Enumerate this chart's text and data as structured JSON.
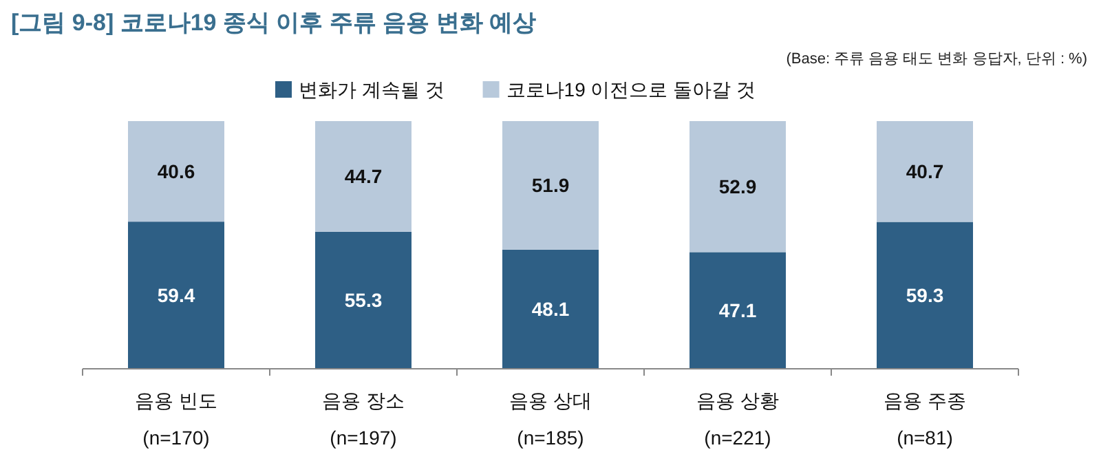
{
  "chart_data": {
    "type": "bar",
    "title": "[그림 9-8] 코로나19 종식 이후 주류 음용 변화 예상",
    "subtitle": "(Base: 주류 음용 태도 변화 응답자, 단위 : %)",
    "categories": [
      "음용 빈도\n(n=170)",
      "음용 장소\n(n=197)",
      "음용 상대\n(n=185)",
      "음용 상황\n(n=221)",
      "음용 주종\n(n=81)"
    ],
    "series": [
      {
        "name": "변화가 계속될 것",
        "color": "#2e5f85",
        "values": [
          59.4,
          55.3,
          48.1,
          47.1,
          59.3
        ]
      },
      {
        "name": "코로나19 이전으로 돌아갈 것",
        "color": "#b8c9db",
        "values": [
          40.6,
          44.7,
          51.9,
          52.9,
          40.7
        ]
      }
    ],
    "stacked": true,
    "data_labels": true,
    "legend": "top"
  }
}
